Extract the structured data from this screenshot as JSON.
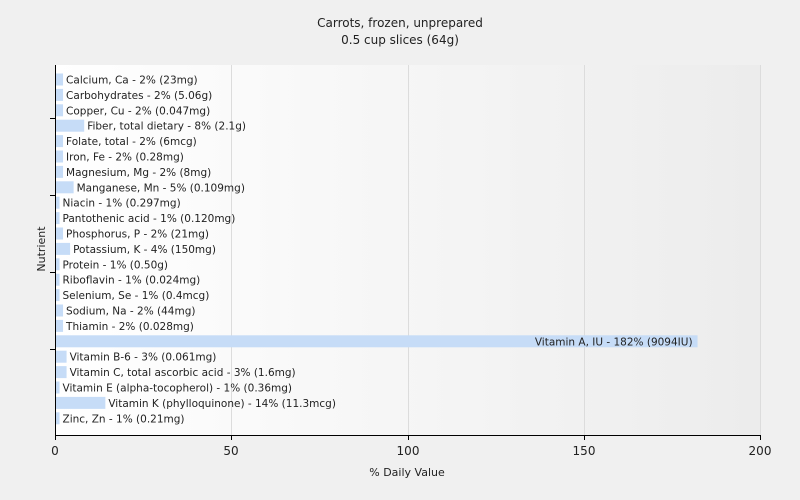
{
  "chart_data": {
    "type": "bar",
    "orientation": "horizontal",
    "title": "Carrots, frozen, unprepared",
    "subtitle": "0.5 cup slices (64g)",
    "xlabel": "% Daily Value",
    "ylabel": "Nutrient",
    "xlim": [
      0,
      200
    ],
    "xticks": [
      "0",
      "50",
      "100",
      "150",
      "200"
    ],
    "grid": true,
    "bar_color": "#c6dcf7",
    "categories": [
      "Calcium, Ca",
      "Carbohydrates",
      "Copper, Cu",
      "Fiber, total dietary",
      "Folate, total",
      "Iron, Fe",
      "Magnesium, Mg",
      "Manganese, Mn",
      "Niacin",
      "Pantothenic acid",
      "Phosphorus, P",
      "Potassium, K",
      "Protein",
      "Riboflavin",
      "Selenium, Se",
      "Sodium, Na",
      "Thiamin",
      "Vitamin A, IU",
      "Vitamin B-6",
      "Vitamin C, total ascorbic acid",
      "Vitamin E (alpha-tocopherol)",
      "Vitamin K (phylloquinone)",
      "Zinc, Zn"
    ],
    "values": [
      2,
      2,
      2,
      8,
      2,
      2,
      2,
      5,
      1,
      1,
      2,
      4,
      1,
      1,
      1,
      2,
      2,
      182,
      3,
      3,
      1,
      14,
      1
    ],
    "labels": [
      "Calcium, Ca - 2% (23mg)",
      "Carbohydrates - 2% (5.06g)",
      "Copper, Cu - 2% (0.047mg)",
      "Fiber, total dietary - 8% (2.1g)",
      "Folate, total - 2% (6mcg)",
      "Iron, Fe - 2% (0.28mg)",
      "Magnesium, Mg - 2% (8mg)",
      "Manganese, Mn - 5% (0.109mg)",
      "Niacin - 1% (0.297mg)",
      "Pantothenic acid - 1% (0.120mg)",
      "Phosphorus, P - 2% (21mg)",
      "Potassium, K - 4% (150mg)",
      "Protein - 1% (0.50g)",
      "Riboflavin - 1% (0.024mg)",
      "Selenium, Se - 1% (0.4mcg)",
      "Sodium, Na - 2% (44mg)",
      "Thiamin - 2% (0.028mg)",
      "Vitamin A, IU - 182% (9094IU)",
      "Vitamin B-6 - 3% (0.061mg)",
      "Vitamin C, total ascorbic acid - 3% (1.6mg)",
      "Vitamin E (alpha-tocopherol) - 1% (0.36mg)",
      "Vitamin K (phylloquinone) - 14% (11.3mcg)",
      "Zinc, Zn - 1% (0.21mg)"
    ]
  }
}
